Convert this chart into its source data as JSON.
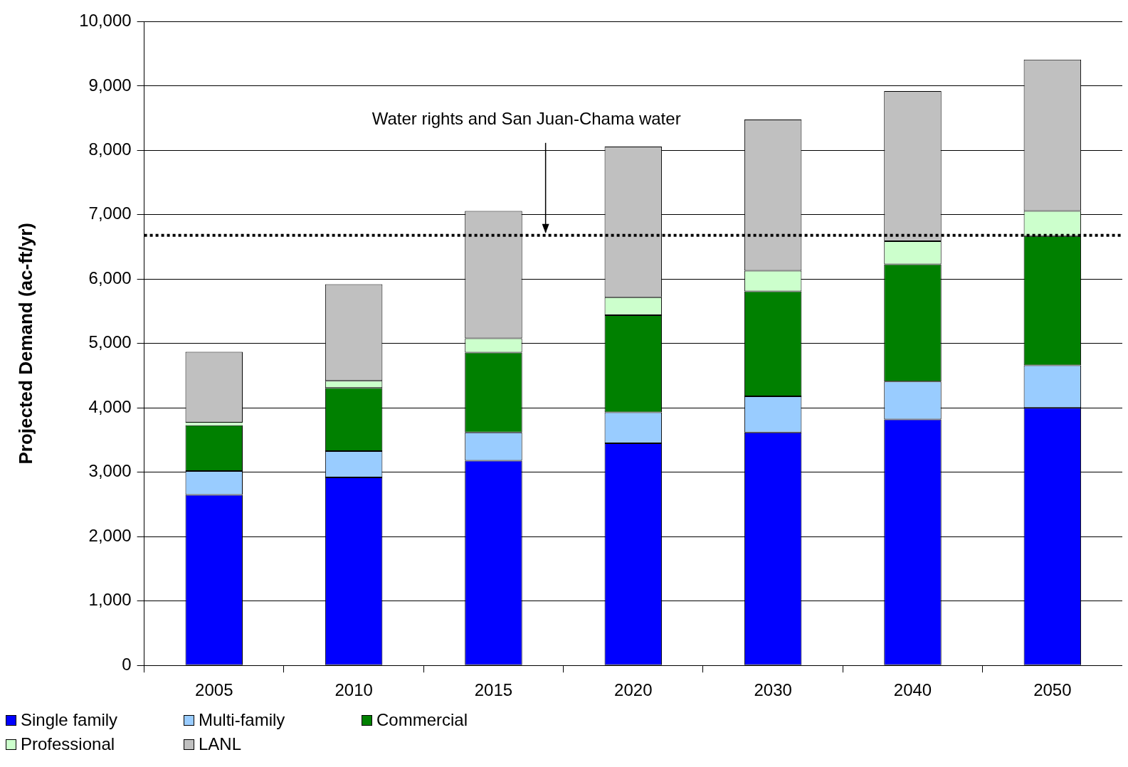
{
  "chart_data": {
    "type": "bar",
    "stacked": true,
    "ylabel": "Projected Demand (ac-ft/yr)",
    "categories": [
      "2005",
      "2010",
      "2015",
      "2020",
      "2030",
      "2040",
      "2050"
    ],
    "series": [
      {
        "name": "Single family",
        "color": "#0000ff",
        "values": [
          2650,
          2920,
          3180,
          3450,
          3620,
          3820,
          4000
        ]
      },
      {
        "name": "Multi-family",
        "color": "#99ccff",
        "values": [
          370,
          410,
          440,
          480,
          560,
          590,
          660
        ]
      },
      {
        "name": "Commercial",
        "color": "#008000",
        "values": [
          710,
          980,
          1240,
          1510,
          1630,
          1820,
          2010
        ]
      },
      {
        "name": "Professional",
        "color": "#ccffcc",
        "values": [
          40,
          110,
          220,
          280,
          320,
          360,
          390
        ]
      },
      {
        "name": "LANL",
        "color": "#c0c0c0",
        "values": [
          1100,
          1500,
          1980,
          2340,
          2350,
          2330,
          2350
        ]
      }
    ],
    "ylim": [
      0,
      10000
    ],
    "yticks": [
      {
        "value": 0,
        "label": "0"
      },
      {
        "value": 1000,
        "label": "1,000"
      },
      {
        "value": 2000,
        "label": "2,000"
      },
      {
        "value": 3000,
        "label": "3,000"
      },
      {
        "value": 4000,
        "label": "4,000"
      },
      {
        "value": 5000,
        "label": "5,000"
      },
      {
        "value": 6000,
        "label": "6,000"
      },
      {
        "value": 7000,
        "label": "7,000"
      },
      {
        "value": 8000,
        "label": "8,000"
      },
      {
        "value": 9000,
        "label": "9,000"
      },
      {
        "value": 10000,
        "label": "10,000"
      }
    ],
    "grid": "y",
    "legend": "bottom left",
    "ref_lines": [
      {
        "axis": "y",
        "value": 6680,
        "label": "Water rights and San Juan-Chama water",
        "color": "#000000",
        "line_style": "dotted"
      }
    ]
  }
}
